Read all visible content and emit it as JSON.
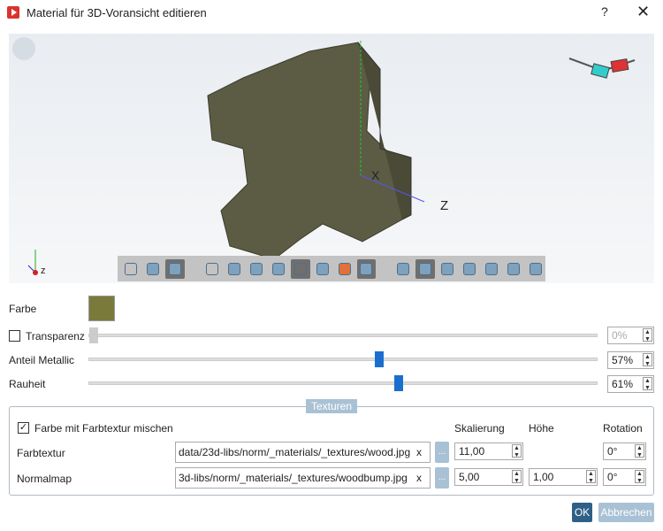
{
  "window": {
    "title": "Material für 3D-Voransicht editieren",
    "help": "?",
    "close": "✕"
  },
  "viewport": {
    "axis_x": "X",
    "axis_z": "Z",
    "triad_label": "z",
    "model_color": "#5a5a42"
  },
  "toolbar": {
    "icons": [
      "wireframe-cylinder",
      "shaded-cylinder",
      "shaded-edges-cylinder",
      "zoom",
      "zoom-window",
      "rotate",
      "toolbar-view",
      "grid-wireframe",
      "section-cylinder",
      "textured-cylinder",
      "dark-cube",
      "view-front",
      "view-back",
      "view-left",
      "view-right",
      "view-top",
      "view-bottom",
      "view-iso"
    ],
    "active": [
      2,
      7,
      10,
      12
    ]
  },
  "props": {
    "farbe_label": "Farbe",
    "farbe_color": "#7a7a3a",
    "transparenz_label": "Transparenz",
    "transparenz_checked": false,
    "transparenz_value": "0%",
    "transparenz_pct": 0,
    "metallic_label": "Anteil Metallic",
    "metallic_value": "57%",
    "metallic_pct": 57,
    "rauheit_label": "Rauheit",
    "rauheit_value": "61%",
    "rauheit_pct": 61
  },
  "textures": {
    "title": "Texturen",
    "mix_label": "Farbe mit Farbtextur mischen",
    "mix_checked": true,
    "col_scale": "Skalierung",
    "col_height": "Höhe",
    "col_rotation": "Rotation",
    "rows": [
      {
        "label": "Farbtextur",
        "path": "data/23d-libs/norm/_materials/_textures/wood.jpg",
        "clear": "x",
        "browse": "...",
        "scale": "11,00",
        "rotation": "0°"
      },
      {
        "label": "Normalmap",
        "path": "3d-libs/norm/_materials/_textures/woodbump.jpg",
        "clear": "x",
        "browse": "...",
        "scale": "5,00",
        "height": "1,00",
        "rotation": "0°"
      }
    ]
  },
  "buttons": {
    "ok": "OK",
    "cancel": "Abbrechen"
  }
}
